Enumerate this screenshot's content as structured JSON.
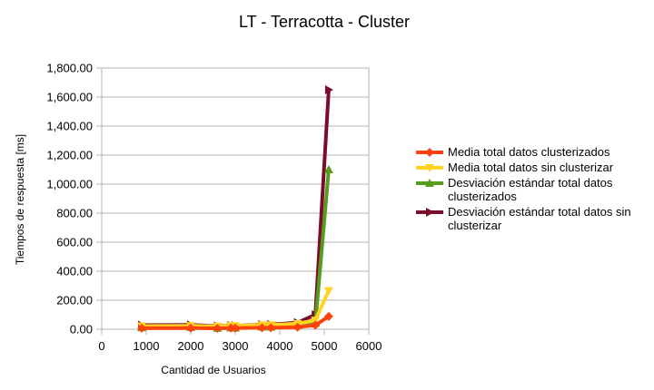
{
  "chart_data": {
    "type": "scatter",
    "title": "LT - Terracotta - Cluster",
    "xlabel": "Cantidad de Usuarios",
    "ylabel": "Tiempos de respuesta [ms]",
    "xlim": [
      0,
      6000
    ],
    "ylim": [
      0,
      1800
    ],
    "x_ticks": [
      0,
      1000,
      2000,
      3000,
      4000,
      5000,
      6000
    ],
    "x_tick_labels": [
      "0",
      "1000",
      "2000",
      "3000",
      "4000",
      "5000",
      "6000"
    ],
    "y_ticks": [
      0,
      200,
      400,
      600,
      800,
      1000,
      1200,
      1400,
      1600,
      1800
    ],
    "y_tick_labels": [
      "0.00",
      "200.00",
      "400.00",
      "600.00",
      "800.00",
      "1,000.00",
      "1,200.00",
      "1,400.00",
      "1,600.00",
      "1,800.00"
    ],
    "grid": "horizontal",
    "legend_position": "right",
    "series": [
      {
        "name": "Desviación estándar total datos sin clusterizar",
        "legend_lines": [
          "Desviación estándar total datos sin",
          "clusterizar"
        ],
        "color": "#7b0c2b",
        "marker": "triangle-right",
        "points": [
          [
            900,
            28
          ],
          [
            2000,
            30
          ],
          [
            2600,
            22
          ],
          [
            2900,
            25
          ],
          [
            3000,
            24
          ],
          [
            3600,
            32
          ],
          [
            3800,
            33
          ],
          [
            4400,
            45
          ],
          [
            4800,
            100
          ],
          [
            5100,
            1650
          ]
        ]
      },
      {
        "name": "Desviación estándar total datos clusterizados",
        "legend_lines": [
          "Desviación estándar total datos",
          "clusterizados"
        ],
        "color": "#579d1c",
        "marker": "triangle-up",
        "points": [
          [
            900,
            12
          ],
          [
            2000,
            13
          ],
          [
            2600,
            8
          ],
          [
            2900,
            10
          ],
          [
            3000,
            9
          ],
          [
            3600,
            16
          ],
          [
            3800,
            16
          ],
          [
            4400,
            26
          ],
          [
            4800,
            42
          ],
          [
            5100,
            1100
          ]
        ]
      },
      {
        "name": "Media total datos sin clusterizar",
        "legend_lines": [
          "Media total datos sin clusterizar"
        ],
        "color": "#ffd320",
        "marker": "triangle-down",
        "points": [
          [
            900,
            22
          ],
          [
            2000,
            24
          ],
          [
            2600,
            20
          ],
          [
            2900,
            24
          ],
          [
            3000,
            24
          ],
          [
            3600,
            30
          ],
          [
            3800,
            30
          ],
          [
            4400,
            38
          ],
          [
            4800,
            62
          ],
          [
            5100,
            265
          ]
        ]
      },
      {
        "name": "Media total datos clusterizados",
        "legend_lines": [
          "Media total datos clusterizados"
        ],
        "color": "#ff420e",
        "marker": "diamond",
        "points": [
          [
            900,
            7
          ],
          [
            2000,
            8
          ],
          [
            2600,
            6
          ],
          [
            2900,
            8
          ],
          [
            3000,
            8
          ],
          [
            3600,
            10
          ],
          [
            3800,
            10
          ],
          [
            4400,
            14
          ],
          [
            4800,
            28
          ],
          [
            5100,
            88
          ]
        ]
      }
    ]
  }
}
